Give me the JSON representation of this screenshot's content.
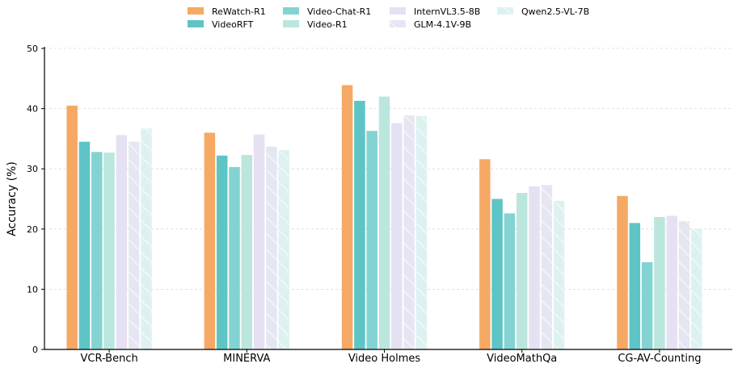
{
  "chart_data": {
    "type": "bar",
    "title": "",
    "xlabel": "",
    "ylabel": "Accuracy (%)",
    "ylim": [
      0,
      50
    ],
    "yticks": [
      0,
      10,
      20,
      30,
      40,
      50
    ],
    "grid": "horizontal dashed",
    "legend_position": "top-center",
    "categories": [
      "VCR-Bench",
      "MINERVA",
      "Video Holmes",
      "VideoMathQa",
      "CG-AV-Counting"
    ],
    "series": [
      {
        "name": "ReWatch-R1",
        "color": "#f5a964",
        "hatch": false,
        "values": [
          40.5,
          36.0,
          43.9,
          31.6,
          25.5
        ]
      },
      {
        "name": "VideoRFT",
        "color": "#5ec4c6",
        "hatch": false,
        "values": [
          34.5,
          32.2,
          41.3,
          25.0,
          21.0
        ]
      },
      {
        "name": "Video-Chat-R1",
        "color": "#84d3d3",
        "hatch": false,
        "values": [
          32.8,
          30.3,
          36.3,
          22.6,
          14.5
        ]
      },
      {
        "name": "Video-R1",
        "color": "#bbe6dd",
        "hatch": false,
        "values": [
          32.7,
          32.3,
          42.0,
          26.0,
          22.0
        ]
      },
      {
        "name": "InternVL3.5-8B",
        "color": "#e6e0f3",
        "hatch": false,
        "values": [
          35.6,
          35.7,
          37.6,
          27.1,
          22.2
        ]
      },
      {
        "name": "GLM-4.1V-9B",
        "color": "#e6e6f3",
        "hatch": true,
        "values": [
          34.5,
          33.7,
          38.9,
          27.3,
          21.3
        ]
      },
      {
        "name": "Qwen2.5-VL-7B",
        "color": "#def1f1",
        "hatch": true,
        "values": [
          36.7,
          33.1,
          38.8,
          24.7,
          20.0
        ]
      }
    ]
  }
}
